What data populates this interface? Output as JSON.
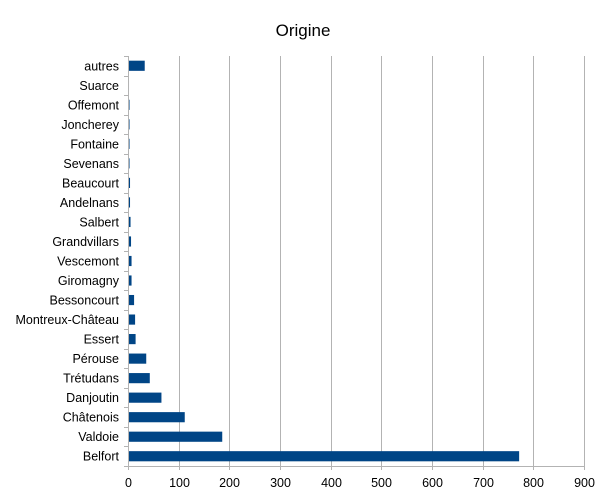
{
  "chart_data": {
    "type": "bar",
    "orientation": "horizontal",
    "title": "Origine",
    "xlabel": "",
    "ylabel": "",
    "xlim": [
      0,
      900
    ],
    "x_ticks": [
      0,
      100,
      200,
      300,
      400,
      500,
      600,
      700,
      800,
      900
    ],
    "grid": true,
    "legend": "none",
    "bar_color": "#004586",
    "categories": [
      "Belfort",
      "Valdoie",
      "Châtenois",
      "Danjoutin",
      "Trétudans",
      "Pérouse",
      "Essert",
      "Montreux-Château",
      "Bessoncourt",
      "Giromagny",
      "Vescemont",
      "Grandvillars",
      "Salbert",
      "Andelnans",
      "Beaucourt",
      "Sevenans",
      "Fontaine",
      "Joncherey",
      "Offemont",
      "Suarce",
      "autres"
    ],
    "values": [
      772,
      186,
      112,
      66,
      43,
      36,
      15,
      14,
      12,
      7,
      7,
      6,
      5,
      4,
      4,
      3,
      3,
      3,
      3,
      2,
      33
    ]
  }
}
